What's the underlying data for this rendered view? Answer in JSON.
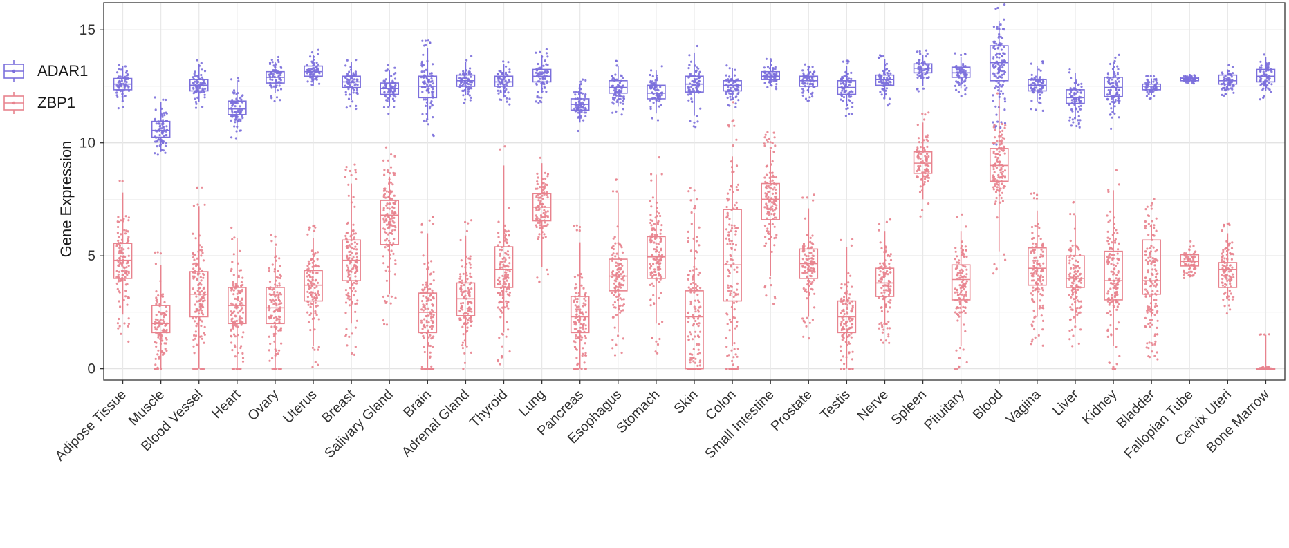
{
  "chart_data": {
    "type": "boxplot",
    "title": "",
    "xlabel": "",
    "ylabel": "Gene Expression",
    "ylim": [
      -0.5,
      16.2
    ],
    "yticks": [
      0,
      5,
      10,
      15
    ],
    "legend_position": "left",
    "categories": [
      "Adipose Tissue",
      "Muscle",
      "Blood Vessel",
      "Heart",
      "Ovary",
      "Uterus",
      "Breast",
      "Salivary Gland",
      "Brain",
      "Adrenal Gland",
      "Thyroid",
      "Lung",
      "Pancreas",
      "Esophagus",
      "Stomach",
      "Skin",
      "Colon",
      "Small Intestine",
      "Prostate",
      "Testis",
      "Nerve",
      "Spleen",
      "Pituitary",
      "Blood",
      "Vagina",
      "Liver",
      "Kidney",
      "Bladder",
      "Fallopian Tube",
      "Cervix Uteri",
      "Bone Marrow"
    ],
    "series": [
      {
        "name": "ADAR1",
        "color": "#7b6fdc",
        "box": [
          [
            11.8,
            12.35,
            12.6,
            12.85,
            13.4
          ],
          [
            9.6,
            10.25,
            10.55,
            10.95,
            11.8
          ],
          [
            11.8,
            12.3,
            12.55,
            12.8,
            13.5
          ],
          [
            10.6,
            11.25,
            11.5,
            11.85,
            12.7
          ],
          [
            12.2,
            12.65,
            12.9,
            13.15,
            13.6
          ],
          [
            12.5,
            12.95,
            13.15,
            13.4,
            13.9
          ],
          [
            11.9,
            12.45,
            12.7,
            12.95,
            13.6
          ],
          [
            11.6,
            12.15,
            12.4,
            12.65,
            13.2
          ],
          [
            11.0,
            12.0,
            12.5,
            12.95,
            14.2
          ],
          [
            12.1,
            12.5,
            12.75,
            13.0,
            13.6
          ],
          [
            12.0,
            12.5,
            12.7,
            12.95,
            13.5
          ],
          [
            12.2,
            12.7,
            12.95,
            13.25,
            13.9
          ],
          [
            10.9,
            11.45,
            11.7,
            11.95,
            12.6
          ],
          [
            11.6,
            12.2,
            12.45,
            12.75,
            13.4
          ],
          [
            11.3,
            11.95,
            12.2,
            12.55,
            13.2
          ],
          [
            11.2,
            12.25,
            12.6,
            12.95,
            14.0
          ],
          [
            11.9,
            12.3,
            12.55,
            12.75,
            13.3
          ],
          [
            12.5,
            12.8,
            12.95,
            13.15,
            13.6
          ],
          [
            12.2,
            12.5,
            12.75,
            12.95,
            13.4
          ],
          [
            11.6,
            12.15,
            12.45,
            12.75,
            13.4
          ],
          [
            12.0,
            12.55,
            12.8,
            13.0,
            13.7
          ],
          [
            12.5,
            13.1,
            13.3,
            13.5,
            13.9
          ],
          [
            12.4,
            12.9,
            13.1,
            13.35,
            13.8
          ],
          [
            11.0,
            12.75,
            13.55,
            14.3,
            15.4
          ],
          [
            11.8,
            12.3,
            12.55,
            12.8,
            13.4
          ],
          [
            11.1,
            11.75,
            12.0,
            12.35,
            13.1
          ],
          [
            11.3,
            12.05,
            12.45,
            12.9,
            13.5
          ],
          [
            12.1,
            12.35,
            12.5,
            12.6,
            12.85
          ],
          [
            12.7,
            12.75,
            12.85,
            12.9,
            13.05
          ],
          [
            12.4,
            12.6,
            12.75,
            13.0,
            13.25
          ],
          [
            12.3,
            12.7,
            12.95,
            13.25,
            13.8
          ]
        ]
      },
      {
        "name": "ZBP1",
        "color": "#e8838e",
        "box": [
          [
            2.4,
            4.0,
            4.8,
            5.55,
            7.8
          ],
          [
            0.0,
            1.6,
            2.0,
            2.8,
            4.6
          ],
          [
            0.0,
            2.3,
            3.3,
            4.3,
            7.2
          ],
          [
            0.0,
            2.0,
            2.8,
            3.6,
            5.8
          ],
          [
            0.0,
            2.0,
            2.7,
            3.6,
            5.4
          ],
          [
            1.0,
            3.0,
            3.7,
            4.35,
            5.8
          ],
          [
            2.0,
            3.9,
            4.8,
            5.7,
            8.2
          ],
          [
            3.3,
            5.5,
            6.8,
            7.45,
            8.5
          ],
          [
            0.0,
            1.6,
            2.5,
            3.35,
            6.0
          ],
          [
            1.0,
            2.35,
            3.1,
            3.8,
            5.9
          ],
          [
            1.6,
            3.6,
            4.4,
            5.4,
            9.0
          ],
          [
            4.5,
            6.55,
            7.15,
            7.75,
            9.1
          ],
          [
            0.0,
            1.6,
            2.3,
            3.2,
            5.6
          ],
          [
            1.6,
            3.45,
            4.1,
            4.85,
            7.8
          ],
          [
            2.0,
            4.0,
            4.95,
            5.85,
            8.6
          ],
          [
            0.0,
            0.0,
            2.3,
            3.45,
            6.9
          ],
          [
            1.0,
            3.0,
            4.6,
            7.05,
            9.4
          ],
          [
            4.1,
            6.6,
            7.5,
            8.2,
            9.7
          ],
          [
            2.3,
            4.0,
            4.65,
            5.3,
            7.1
          ],
          [
            0.0,
            1.6,
            2.3,
            3.0,
            5.4
          ],
          [
            2.0,
            3.2,
            3.8,
            4.45,
            6.1
          ],
          [
            7.5,
            8.65,
            9.1,
            9.6,
            10.9
          ],
          [
            1.0,
            3.05,
            3.95,
            4.6,
            6.1
          ],
          [
            5.2,
            8.3,
            9.0,
            9.75,
            11.9
          ],
          [
            2.3,
            3.7,
            4.45,
            5.35,
            7.0
          ],
          [
            2.0,
            3.6,
            4.0,
            5.0,
            6.8
          ],
          [
            1.0,
            3.05,
            3.9,
            5.2,
            7.9
          ],
          [
            2.3,
            3.3,
            3.9,
            5.7,
            6.4
          ],
          [
            4.5,
            4.55,
            4.75,
            5.05,
            5.1
          ],
          [
            3.2,
            3.6,
            4.4,
            4.7,
            6.0
          ],
          [
            0.0,
            0.0,
            0.0,
            0.0,
            1.5
          ]
        ]
      }
    ]
  }
}
